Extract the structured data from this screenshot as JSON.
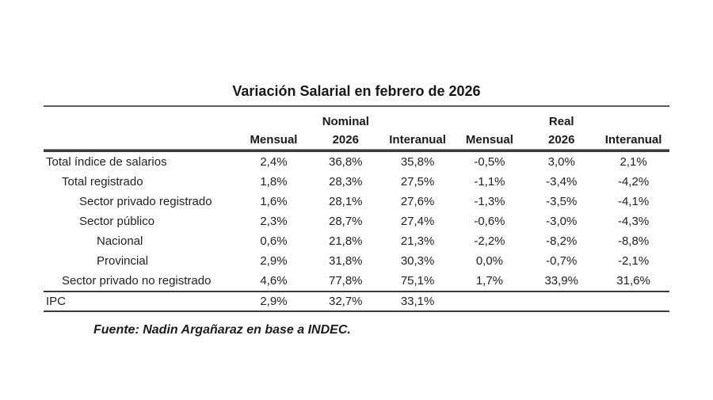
{
  "page": {
    "title": "Variación Salarial en febrero de 2026",
    "source": "Fuente: Nadin Argañaraz en base a INDEC."
  },
  "table": {
    "column_groups": [
      {
        "label": "Nominal"
      },
      {
        "label": "Real"
      }
    ],
    "columns": [
      "Mensual",
      "2026",
      "Interanual",
      "Mensual",
      "2026",
      "Interanual"
    ],
    "rows": [
      {
        "label": "Total índice de salarios",
        "indent": 0,
        "values": [
          "2,4%",
          "36,8%",
          "35,8%",
          "-0,5%",
          "3,0%",
          "2,1%"
        ]
      },
      {
        "label": "Total registrado",
        "indent": 1,
        "values": [
          "1,8%",
          "28,3%",
          "27,5%",
          "-1,1%",
          "-3,4%",
          "-4,2%"
        ]
      },
      {
        "label": "Sector privado registrado",
        "indent": 2,
        "values": [
          "1,6%",
          "28,1%",
          "27,6%",
          "-1,3%",
          "-3,5%",
          "-4,1%"
        ]
      },
      {
        "label": "Sector público",
        "indent": 2,
        "values": [
          "2,3%",
          "28,7%",
          "27,4%",
          "-0,6%",
          "-3,0%",
          "-4,3%"
        ]
      },
      {
        "label": "Nacional",
        "indent": 3,
        "values": [
          "0,6%",
          "21,8%",
          "21,3%",
          "-2,2%",
          "-8,2%",
          "-8,8%"
        ]
      },
      {
        "label": "Provincial",
        "indent": 3,
        "values": [
          "2,9%",
          "31,8%",
          "30,3%",
          "0,0%",
          "-0,7%",
          "-2,1%"
        ]
      },
      {
        "label": "Sector privado no registrado",
        "indent": 1,
        "values": [
          "4,6%",
          "77,8%",
          "75,1%",
          "1,7%",
          "33,9%",
          "31,6%"
        ]
      },
      {
        "label": "IPC",
        "indent": 0,
        "values": [
          "2,9%",
          "32,7%",
          "33,1%",
          "",
          "",
          ""
        ]
      }
    ]
  },
  "chart_data": {
    "type": "table",
    "title": "Variación Salarial en febrero de 2026",
    "column_groups": [
      "Nominal",
      "Real"
    ],
    "columns": [
      "Nominal Mensual",
      "Nominal 2026",
      "Nominal Interanual",
      "Real Mensual",
      "Real 2026",
      "Real Interanual"
    ],
    "rows": [
      [
        "Total índice de salarios",
        2.4,
        36.8,
        35.8,
        -0.5,
        3.0,
        2.1
      ],
      [
        "Total registrado",
        1.8,
        28.3,
        27.5,
        -1.1,
        -3.4,
        -4.2
      ],
      [
        "Sector privado registrado",
        1.6,
        28.1,
        27.6,
        -1.3,
        -3.5,
        -4.1
      ],
      [
        "Sector público",
        2.3,
        28.7,
        27.4,
        -0.6,
        -3.0,
        -4.3
      ],
      [
        "Nacional",
        0.6,
        21.8,
        21.3,
        -2.2,
        -8.2,
        -8.8
      ],
      [
        "Provincial",
        2.9,
        31.8,
        30.3,
        0.0,
        -0.7,
        -2.1
      ],
      [
        "Sector privado no registrado",
        4.6,
        77.8,
        75.1,
        1.7,
        33.9,
        31.6
      ],
      [
        "IPC",
        2.9,
        32.7,
        33.1,
        null,
        null,
        null
      ]
    ],
    "units": "percent",
    "source": "Fuente: Nadin Argañaraz en base a INDEC."
  }
}
